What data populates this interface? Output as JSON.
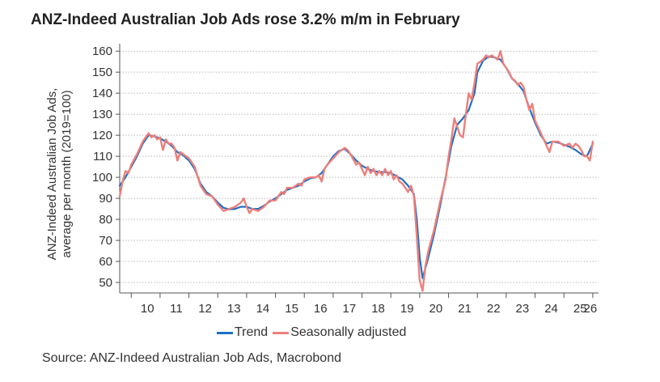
{
  "title": "ANZ-Indeed Australian Job Ads rose 3.2% m/m in February",
  "ylabel_line1": "ANZ-Indeed Australian Job Ads,",
  "ylabel_line2": "average per month (2019=100)",
  "source": "Source: ANZ-Indeed Australian Job Ads, Macrobond",
  "colors": {
    "trend": "#1f6fc4",
    "sa": "#ee7f7a",
    "grid": "#b9b9b9",
    "axis": "#555555"
  },
  "chart_data": {
    "type": "line",
    "title": "ANZ-Indeed Australian Job Ads rose 3.2% m/m in February",
    "xlabel": "",
    "ylabel": "ANZ-Indeed Australian Job Ads, average per month (2019=100)",
    "xlim": [
      2009.6,
      2026.2
    ],
    "ylim": [
      45,
      162
    ],
    "x_ticks": [
      10,
      11,
      12,
      13,
      14,
      15,
      16,
      17,
      18,
      19,
      20,
      21,
      22,
      23,
      24,
      25,
      26
    ],
    "y_ticks": [
      50,
      60,
      70,
      80,
      90,
      100,
      110,
      120,
      130,
      140,
      150,
      160
    ],
    "grid": "horizontal dotted",
    "legend_position": "bottom",
    "series": [
      {
        "name": "Trend",
        "color": "#1f6fc4",
        "points": [
          [
            2009.6,
            96
          ],
          [
            2009.8,
            100
          ],
          [
            2010.0,
            105
          ],
          [
            2010.2,
            110
          ],
          [
            2010.4,
            116
          ],
          [
            2010.6,
            120
          ],
          [
            2010.8,
            119.5
          ],
          [
            2011.0,
            118.5
          ],
          [
            2011.2,
            117
          ],
          [
            2011.4,
            115
          ],
          [
            2011.6,
            112
          ],
          [
            2011.8,
            110.5
          ],
          [
            2012.0,
            108
          ],
          [
            2012.2,
            104
          ],
          [
            2012.4,
            97
          ],
          [
            2012.6,
            93
          ],
          [
            2012.8,
            91
          ],
          [
            2013.0,
            88
          ],
          [
            2013.2,
            85.5
          ],
          [
            2013.4,
            84.8
          ],
          [
            2013.6,
            85
          ],
          [
            2013.8,
            86
          ],
          [
            2014.0,
            86
          ],
          [
            2014.2,
            85
          ],
          [
            2014.4,
            85
          ],
          [
            2014.6,
            86.5
          ],
          [
            2014.8,
            88.5
          ],
          [
            2015.0,
            90
          ],
          [
            2015.2,
            92
          ],
          [
            2015.4,
            94
          ],
          [
            2015.6,
            95
          ],
          [
            2015.8,
            96
          ],
          [
            2016.0,
            98
          ],
          [
            2016.2,
            99.5
          ],
          [
            2016.4,
            100
          ],
          [
            2016.6,
            102
          ],
          [
            2016.8,
            106
          ],
          [
            2017.0,
            110
          ],
          [
            2017.2,
            112.5
          ],
          [
            2017.4,
            113.5
          ],
          [
            2017.6,
            111
          ],
          [
            2017.8,
            108
          ],
          [
            2018.0,
            105.5
          ],
          [
            2018.2,
            104
          ],
          [
            2018.4,
            103
          ],
          [
            2018.6,
            102.5
          ],
          [
            2018.8,
            102.5
          ],
          [
            2019.0,
            102
          ],
          [
            2019.2,
            100.5
          ],
          [
            2019.4,
            99
          ],
          [
            2019.6,
            96
          ],
          [
            2019.8,
            92
          ],
          [
            2019.9,
            80
          ],
          [
            2020.0,
            62
          ],
          [
            2020.1,
            52
          ],
          [
            2020.3,
            62
          ],
          [
            2020.5,
            73
          ],
          [
            2020.7,
            86
          ],
          [
            2020.9,
            100
          ],
          [
            2021.1,
            115
          ],
          [
            2021.3,
            125
          ],
          [
            2021.5,
            128
          ],
          [
            2021.7,
            132
          ],
          [
            2021.9,
            140
          ],
          [
            2022.0,
            150
          ],
          [
            2022.2,
            155.5
          ],
          [
            2022.4,
            157.5
          ],
          [
            2022.6,
            157
          ],
          [
            2022.8,
            156
          ],
          [
            2023.0,
            152
          ],
          [
            2023.2,
            147
          ],
          [
            2023.4,
            144.5
          ],
          [
            2023.6,
            141
          ],
          [
            2023.8,
            133
          ],
          [
            2024.0,
            126
          ],
          [
            2024.2,
            120
          ],
          [
            2024.4,
            116
          ],
          [
            2024.6,
            117
          ],
          [
            2024.8,
            116.5
          ],
          [
            2025.0,
            115.5
          ],
          [
            2025.2,
            114.5
          ],
          [
            2025.4,
            113
          ],
          [
            2025.6,
            111
          ],
          [
            2025.8,
            110
          ],
          [
            2026.0,
            116
          ]
        ]
      },
      {
        "name": "Seasonally adjusted",
        "color": "#ee7f7a",
        "points": [
          [
            2009.6,
            91
          ],
          [
            2009.7,
            98
          ],
          [
            2009.8,
            103
          ],
          [
            2009.9,
            102
          ],
          [
            2010.0,
            106
          ],
          [
            2010.2,
            111
          ],
          [
            2010.3,
            114
          ],
          [
            2010.4,
            117
          ],
          [
            2010.5,
            119
          ],
          [
            2010.6,
            121
          ],
          [
            2010.7,
            119
          ],
          [
            2010.8,
            120
          ],
          [
            2010.9,
            118
          ],
          [
            2011.0,
            119
          ],
          [
            2011.1,
            113
          ],
          [
            2011.2,
            118
          ],
          [
            2011.3,
            116
          ],
          [
            2011.4,
            116
          ],
          [
            2011.5,
            114
          ],
          [
            2011.6,
            108
          ],
          [
            2011.7,
            112
          ],
          [
            2011.8,
            111
          ],
          [
            2012.0,
            109
          ],
          [
            2012.2,
            105
          ],
          [
            2012.4,
            96
          ],
          [
            2012.6,
            92
          ],
          [
            2012.8,
            91
          ],
          [
            2013.0,
            87
          ],
          [
            2013.2,
            84
          ],
          [
            2013.4,
            85
          ],
          [
            2013.6,
            86
          ],
          [
            2013.8,
            88
          ],
          [
            2013.9,
            90
          ],
          [
            2014.0,
            86
          ],
          [
            2014.1,
            83
          ],
          [
            2014.2,
            85
          ],
          [
            2014.4,
            84
          ],
          [
            2014.6,
            86
          ],
          [
            2014.8,
            89
          ],
          [
            2015.0,
            89
          ],
          [
            2015.1,
            91
          ],
          [
            2015.2,
            93
          ],
          [
            2015.3,
            92
          ],
          [
            2015.4,
            95
          ],
          [
            2015.6,
            95
          ],
          [
            2015.8,
            97
          ],
          [
            2015.9,
            96
          ],
          [
            2016.0,
            99
          ],
          [
            2016.2,
            100
          ],
          [
            2016.4,
            100
          ],
          [
            2016.5,
            101
          ],
          [
            2016.6,
            98
          ],
          [
            2016.7,
            104
          ],
          [
            2016.8,
            106
          ],
          [
            2017.0,
            109
          ],
          [
            2017.2,
            112
          ],
          [
            2017.4,
            114
          ],
          [
            2017.5,
            113
          ],
          [
            2017.6,
            111
          ],
          [
            2017.8,
            106
          ],
          [
            2017.9,
            107
          ],
          [
            2018.0,
            104
          ],
          [
            2018.1,
            101
          ],
          [
            2018.2,
            105
          ],
          [
            2018.3,
            102
          ],
          [
            2018.4,
            104
          ],
          [
            2018.5,
            101
          ],
          [
            2018.6,
            103
          ],
          [
            2018.7,
            101
          ],
          [
            2018.8,
            104
          ],
          [
            2018.9,
            101
          ],
          [
            2019.0,
            103
          ],
          [
            2019.1,
            99
          ],
          [
            2019.2,
            101
          ],
          [
            2019.3,
            98
          ],
          [
            2019.4,
            97
          ],
          [
            2019.5,
            95
          ],
          [
            2019.6,
            93
          ],
          [
            2019.7,
            96
          ],
          [
            2019.8,
            91
          ],
          [
            2019.9,
            72
          ],
          [
            2020.0,
            51
          ],
          [
            2020.1,
            46
          ],
          [
            2020.2,
            58
          ],
          [
            2020.3,
            65
          ],
          [
            2020.5,
            75
          ],
          [
            2020.7,
            88
          ],
          [
            2020.9,
            99
          ],
          [
            2021.0,
            110
          ],
          [
            2021.1,
            118
          ],
          [
            2021.2,
            128
          ],
          [
            2021.3,
            124
          ],
          [
            2021.4,
            120
          ],
          [
            2021.5,
            119
          ],
          [
            2021.6,
            130
          ],
          [
            2021.7,
            140
          ],
          [
            2021.8,
            137
          ],
          [
            2021.9,
            145
          ],
          [
            2022.0,
            154
          ],
          [
            2022.1,
            155
          ],
          [
            2022.2,
            156
          ],
          [
            2022.3,
            158
          ],
          [
            2022.4,
            157
          ],
          [
            2022.5,
            158
          ],
          [
            2022.6,
            157
          ],
          [
            2022.7,
            156
          ],
          [
            2022.8,
            160
          ],
          [
            2022.9,
            154
          ],
          [
            2023.0,
            152
          ],
          [
            2023.1,
            150
          ],
          [
            2023.2,
            147
          ],
          [
            2023.3,
            146
          ],
          [
            2023.4,
            144
          ],
          [
            2023.5,
            145
          ],
          [
            2023.6,
            143
          ],
          [
            2023.7,
            137
          ],
          [
            2023.8,
            132
          ],
          [
            2023.9,
            135
          ],
          [
            2024.0,
            127
          ],
          [
            2024.2,
            121
          ],
          [
            2024.4,
            115
          ],
          [
            2024.5,
            112
          ],
          [
            2024.6,
            117
          ],
          [
            2024.8,
            117
          ],
          [
            2025.0,
            115
          ],
          [
            2025.2,
            116
          ],
          [
            2025.3,
            114
          ],
          [
            2025.4,
            116
          ],
          [
            2025.5,
            115
          ],
          [
            2025.6,
            113
          ],
          [
            2025.7,
            110
          ],
          [
            2025.8,
            110
          ],
          [
            2025.9,
            108
          ],
          [
            2026.0,
            117
          ]
        ]
      }
    ]
  },
  "legend": {
    "trend_label": "Trend",
    "sa_label": "Seasonally adjusted"
  }
}
